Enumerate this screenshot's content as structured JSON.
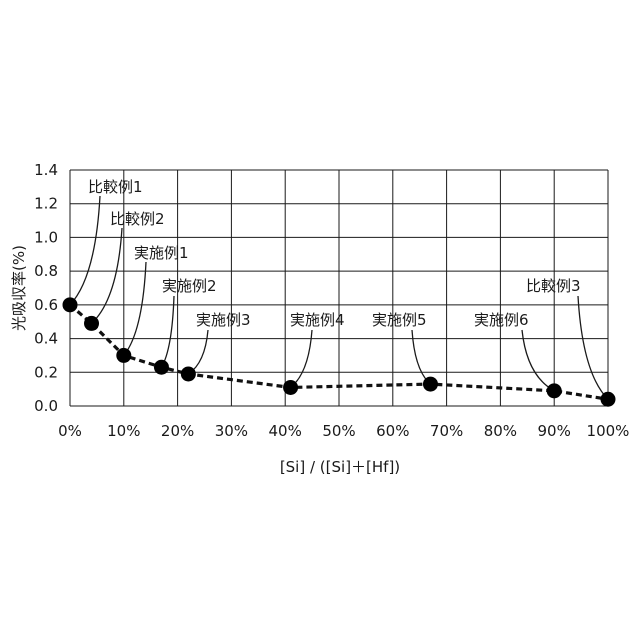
{
  "chart_data": {
    "type": "scatter",
    "title": "",
    "xlabel": "[Si] / ([Si]＋[Hf])",
    "ylabel": "光吸収率(%)",
    "xlim": [
      0,
      100
    ],
    "ylim": [
      0,
      1.4
    ],
    "grid": true,
    "line_style": "dashed",
    "x_ticks": [
      "0%",
      "10%",
      "20%",
      "30%",
      "40%",
      "50%",
      "60%",
      "70%",
      "80%",
      "90%",
      "100%"
    ],
    "y_ticks": [
      "0.0",
      "0.2",
      "0.4",
      "0.6",
      "0.8",
      "1.0",
      "1.2",
      "1.4"
    ],
    "points": [
      {
        "label": "比較例1",
        "x": 0,
        "y": 0.6
      },
      {
        "label": "比較例2",
        "x": 4,
        "y": 0.49
      },
      {
        "label": "実施例1",
        "x": 10,
        "y": 0.3
      },
      {
        "label": "実施例2",
        "x": 17,
        "y": 0.23
      },
      {
        "label": "実施例3",
        "x": 22,
        "y": 0.19
      },
      {
        "label": "実施例4",
        "x": 41,
        "y": 0.11
      },
      {
        "label": "実施例5",
        "x": 67,
        "y": 0.13
      },
      {
        "label": "実施例6",
        "x": 90,
        "y": 0.09
      },
      {
        "label": "比較例3",
        "x": 100,
        "y": 0.04
      }
    ]
  }
}
